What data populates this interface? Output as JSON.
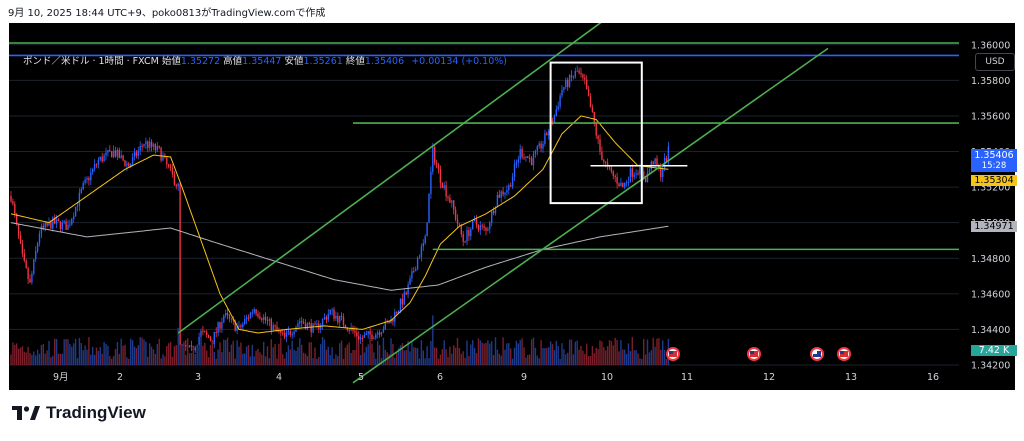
{
  "caption": "9月 10, 2025 18:44 UTC+9、poko0813がTradingView.comで作成",
  "legend": {
    "symbol": "ポンド／米ドル · 1時間 · FXCM",
    "open_label": "始値",
    "open": "1.35272",
    "high_label": "高値",
    "high": "1.35447",
    "low_label": "安値",
    "low": "1.35261",
    "close_label": "終値",
    "close": "1.35406",
    "change": "+0.00134 (+0.10%)"
  },
  "currency_button": "USD",
  "brand": "TradingView",
  "price_tags": {
    "last_price": "1.35406",
    "countdown": "15:28",
    "ma_fast": "1.35304",
    "ma_slow": "1.34971",
    "volume": "7.42 K"
  },
  "colors": {
    "up": "#2962ff",
    "down": "#f23645",
    "ma_fast": "#f5c518",
    "ma_slow": "#b2b5be",
    "levels": "#4caf50",
    "channel": "#4caf50",
    "resistance": "#2962ff",
    "box": "#ffffff"
  },
  "chart_data": {
    "type": "candlestick",
    "instrument": "ポンド／米ドル",
    "interval": "1時間",
    "ylim": [
      1.342,
      1.361
    ],
    "y_ticks": [
      "1.36000",
      "1.35800",
      "1.35600",
      "1.35400",
      "1.35200",
      "1.35000",
      "1.34800",
      "1.34600",
      "1.34400",
      "1.34200"
    ],
    "x_ticks": [
      "9月",
      "2",
      "3",
      "4",
      "5",
      "6",
      "9",
      "10",
      "11",
      "12",
      "13",
      "16"
    ],
    "close_path": [
      [
        0,
        1.3515
      ],
      [
        6,
        1.348
      ],
      [
        10,
        1.3465
      ],
      [
        15,
        1.3495
      ],
      [
        22,
        1.35
      ],
      [
        30,
        1.3498
      ],
      [
        38,
        1.352
      ],
      [
        46,
        1.3535
      ],
      [
        54,
        1.354
      ],
      [
        62,
        1.3532
      ],
      [
        70,
        1.3545
      ],
      [
        78,
        1.354
      ],
      [
        84,
        1.3528
      ],
      [
        88,
        1.352
      ],
      [
        89,
        1.343
      ],
      [
        95,
        1.3428
      ],
      [
        100,
        1.3438
      ],
      [
        106,
        1.3434
      ],
      [
        112,
        1.3448
      ],
      [
        120,
        1.344
      ],
      [
        128,
        1.3452
      ],
      [
        136,
        1.3443
      ],
      [
        144,
        1.3435
      ],
      [
        152,
        1.3445
      ],
      [
        160,
        1.344
      ],
      [
        168,
        1.345
      ],
      [
        176,
        1.3443
      ],
      [
        184,
        1.3435
      ],
      [
        192,
        1.3438
      ],
      [
        200,
        1.3445
      ],
      [
        208,
        1.346
      ],
      [
        214,
        1.348
      ],
      [
        218,
        1.349
      ],
      [
        222,
        1.354
      ],
      [
        226,
        1.3525
      ],
      [
        232,
        1.351
      ],
      [
        238,
        1.349
      ],
      [
        244,
        1.35
      ],
      [
        250,
        1.3495
      ],
      [
        256,
        1.3515
      ],
      [
        262,
        1.352
      ],
      [
        268,
        1.354
      ],
      [
        274,
        1.3535
      ],
      [
        280,
        1.3545
      ],
      [
        286,
        1.356
      ],
      [
        290,
        1.3575
      ],
      [
        294,
        1.358
      ],
      [
        298,
        1.3585
      ],
      [
        302,
        1.3578
      ],
      [
        306,
        1.356
      ],
      [
        310,
        1.354
      ],
      [
        314,
        1.353
      ],
      [
        318,
        1.3525
      ],
      [
        322,
        1.352
      ],
      [
        326,
        1.3528
      ],
      [
        330,
        1.353
      ],
      [
        334,
        1.3525
      ],
      [
        338,
        1.3535
      ],
      [
        342,
        1.3528
      ],
      [
        346,
        1.354
      ]
    ],
    "ma_fast_path": [
      [
        0,
        1.3505
      ],
      [
        20,
        1.35
      ],
      [
        40,
        1.3515
      ],
      [
        60,
        1.353
      ],
      [
        75,
        1.3538
      ],
      [
        84,
        1.3537
      ],
      [
        90,
        1.352
      ],
      [
        100,
        1.349
      ],
      [
        110,
        1.346
      ],
      [
        120,
        1.344
      ],
      [
        130,
        1.3438
      ],
      [
        145,
        1.344
      ],
      [
        165,
        1.3442
      ],
      [
        185,
        1.344
      ],
      [
        200,
        1.3445
      ],
      [
        210,
        1.3455
      ],
      [
        218,
        1.347
      ],
      [
        226,
        1.3488
      ],
      [
        236,
        1.3498
      ],
      [
        250,
        1.3505
      ],
      [
        265,
        1.3515
      ],
      [
        280,
        1.353
      ],
      [
        290,
        1.355
      ],
      [
        300,
        1.356
      ],
      [
        308,
        1.3558
      ],
      [
        318,
        1.3545
      ],
      [
        330,
        1.3532
      ],
      [
        346,
        1.353
      ]
    ],
    "ma_slow_path": [
      [
        0,
        1.35
      ],
      [
        40,
        1.3492
      ],
      [
        84,
        1.3497
      ],
      [
        110,
        1.3488
      ],
      [
        140,
        1.3478
      ],
      [
        170,
        1.3468
      ],
      [
        200,
        1.3462
      ],
      [
        225,
        1.3465
      ],
      [
        250,
        1.3475
      ],
      [
        280,
        1.3485
      ],
      [
        310,
        1.3492
      ],
      [
        346,
        1.3498
      ]
    ],
    "horizontal_levels": [
      {
        "price": 1.3594,
        "color": "resistance"
      },
      {
        "price": 1.3601,
        "color": "levels"
      },
      {
        "price": 1.3556,
        "color": "levels"
      },
      {
        "price": 1.3485,
        "color": "levels"
      },
      {
        "price": 1.3532,
        "color": "box"
      }
    ],
    "channel": {
      "upper": [
        [
          88,
          1.3438
        ],
        [
          320,
          1.362
        ]
      ],
      "lower": [
        [
          180,
          1.341
        ],
        [
          430,
          1.3598
        ]
      ]
    },
    "box": {
      "x": [
        284,
        332
      ],
      "price": [
        1.359,
        1.3511
      ]
    },
    "event_markers": [
      "US",
      "US",
      "UK",
      "US"
    ]
  }
}
